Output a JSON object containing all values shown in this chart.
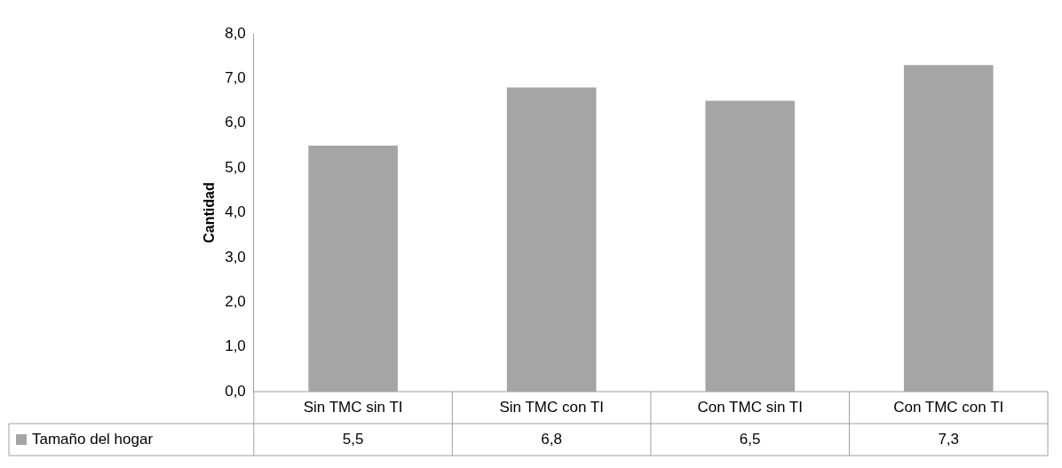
{
  "chart_data": {
    "type": "bar",
    "ylabel": "Cantidad",
    "categories": [
      "Sin TMC sin TI",
      "Sin TMC con TI",
      "Con TMC sin TI",
      "Con TMC con TI"
    ],
    "series": [
      {
        "name": "Tamaño del hogar",
        "color": "#a5a5a5",
        "values": [
          5.5,
          6.8,
          6.5,
          7.3
        ],
        "value_labels": [
          "5,5",
          "6,8",
          "6,5",
          "7,3"
        ]
      }
    ],
    "ylim": [
      0,
      8
    ],
    "yticks": [
      {
        "value": 0,
        "label": "0,0"
      },
      {
        "value": 1,
        "label": "1,0"
      },
      {
        "value": 2,
        "label": "2,0"
      },
      {
        "value": 3,
        "label": "3,0"
      },
      {
        "value": 4,
        "label": "4,0"
      },
      {
        "value": 5,
        "label": "5,0"
      },
      {
        "value": 6,
        "label": "6,0"
      },
      {
        "value": 7,
        "label": "7,0"
      },
      {
        "value": 8,
        "label": "8,0"
      }
    ],
    "grid": false,
    "legend": "bottom"
  }
}
